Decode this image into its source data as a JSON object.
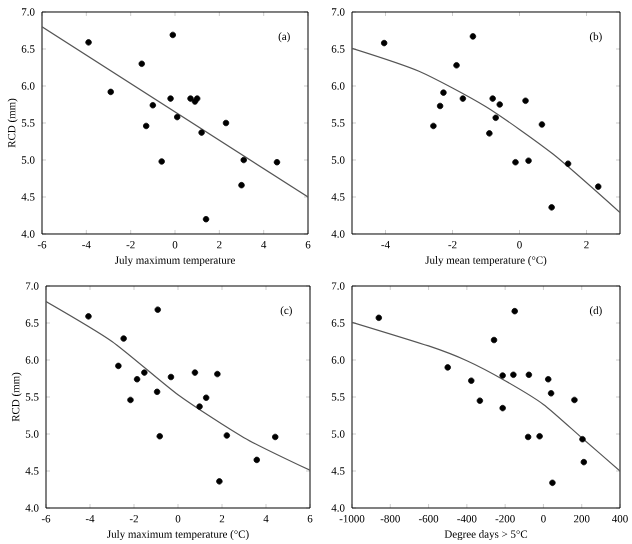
{
  "chart_data": [
    {
      "type": "scatter",
      "xlabel": "July maximum temperature",
      "ylabel": "RCD (mm)",
      "annotations": [
        "(a)"
      ],
      "xlim": [
        -6,
        6
      ],
      "xticks": [
        -6,
        -4,
        -2,
        0,
        2,
        4,
        6
      ],
      "ylim": [
        4,
        7
      ],
      "yticks": [
        {
          "value": 4,
          "label": "4.0"
        },
        {
          "value": 4.5,
          "label": "4.5"
        },
        {
          "value": 5,
          "label": "5.0"
        },
        {
          "value": 5.5,
          "label": "5.5"
        },
        {
          "value": 6,
          "label": "6.0"
        },
        {
          "value": 6.5,
          "label": "6.5"
        },
        {
          "value": 7,
          "label": "7.0"
        }
      ],
      "series": [
        {
          "color": "#000000",
          "x": [
            -3.9,
            -0.1,
            -1.5,
            -2.9,
            -1.0,
            -0.2,
            -1.3,
            0.1,
            0.7,
            0.9,
            1.0,
            1.2,
            2.3,
            -0.6,
            3.1,
            3.0,
            4.6,
            1.4
          ],
          "values": [
            6.59,
            6.69,
            6.3,
            5.92,
            5.74,
            5.83,
            5.46,
            5.58,
            5.83,
            5.79,
            5.83,
            5.37,
            5.5,
            4.98,
            5.0,
            4.66,
            4.97,
            4.2
          ]
        },
        {
          "type": "line",
          "color": "#555555",
          "x": [
            -6,
            6
          ],
          "values": [
            6.8,
            4.5
          ]
        }
      ]
    },
    {
      "type": "scatter",
      "xlabel": "July mean temperature (°C)",
      "annotations": [
        "(b)"
      ],
      "xlim": [
        -5,
        3
      ],
      "xticks": [
        -4,
        -2,
        0,
        2
      ],
      "ylim": [
        4,
        7
      ],
      "yticks": [
        {
          "value": 4,
          "label": "4.0"
        },
        {
          "value": 4.5,
          "label": "4.5"
        },
        {
          "value": 5,
          "label": "5.0"
        },
        {
          "value": 5.5,
          "label": "5.5"
        },
        {
          "value": 6,
          "label": "6.0"
        },
        {
          "value": 6.5,
          "label": "6.5"
        },
        {
          "value": 7,
          "label": "7.0"
        }
      ],
      "series": [
        {
          "color": "#000000",
          "x": [
            -4.04,
            -1.39,
            -1.88,
            -2.27,
            -2.37,
            -2.57,
            -1.69,
            -0.8,
            -0.59,
            -0.71,
            -0.9,
            0.18,
            0.67,
            -0.12,
            0.27,
            1.45,
            0.96,
            2.35
          ],
          "values": [
            6.58,
            6.67,
            6.28,
            5.91,
            5.73,
            5.46,
            5.83,
            5.83,
            5.75,
            5.57,
            5.36,
            5.8,
            5.48,
            4.97,
            4.99,
            4.95,
            4.36,
            4.64
          ]
        },
        {
          "type": "line",
          "color": "#555555",
          "x": [
            -5,
            -3,
            -1,
            1,
            3
          ],
          "values": [
            6.51,
            6.2,
            5.72,
            5.08,
            4.29
          ]
        }
      ]
    },
    {
      "type": "scatter",
      "xlabel": "July maximum temperature (°C)",
      "ylabel": "RCD (mm)",
      "annotations": [
        "(c)"
      ],
      "xlim": [
        -6,
        6
      ],
      "xticks": [
        -6,
        -4,
        -2,
        0,
        2,
        4,
        6
      ],
      "ylim": [
        4,
        7
      ],
      "yticks": [
        {
          "value": 4,
          "label": "4.0"
        },
        {
          "value": 4.5,
          "label": "4.5"
        },
        {
          "value": 5,
          "label": "5.0"
        },
        {
          "value": 5.5,
          "label": "5.5"
        },
        {
          "value": 6,
          "label": "6.0"
        },
        {
          "value": 6.5,
          "label": "6.5"
        },
        {
          "value": 7,
          "label": "7.0"
        }
      ],
      "series": [
        {
          "color": "#000000",
          "x": [
            -4.07,
            -0.92,
            -2.47,
            -2.71,
            -1.53,
            -1.86,
            -2.16,
            -0.95,
            -0.32,
            0.77,
            1.79,
            0.98,
            1.28,
            -0.83,
            2.22,
            3.58,
            4.42,
            1.88
          ],
          "values": [
            6.59,
            6.68,
            6.29,
            5.92,
            5.83,
            5.74,
            5.46,
            5.57,
            5.77,
            5.83,
            5.81,
            5.37,
            5.49,
            4.97,
            4.98,
            4.65,
            4.96,
            4.36
          ]
        },
        {
          "type": "line",
          "color": "#555555",
          "x": [
            -6,
            -3,
            0,
            3,
            6
          ],
          "values": [
            6.79,
            6.25,
            5.53,
            4.95,
            4.51
          ]
        }
      ]
    },
    {
      "type": "scatter",
      "xlabel": "Degree days > 5°C",
      "annotations": [
        "(d)"
      ],
      "xlim": [
        -1000,
        400
      ],
      "xticks": [
        -1000,
        -800,
        -600,
        -400,
        -200,
        0,
        200,
        400
      ],
      "ylim": [
        4,
        7
      ],
      "yticks": [
        {
          "value": 4,
          "label": "4.0"
        },
        {
          "value": 4.5,
          "label": "4.5"
        },
        {
          "value": 5,
          "label": "5.0"
        },
        {
          "value": 5.5,
          "label": "5.5"
        },
        {
          "value": 6,
          "label": "6.0"
        },
        {
          "value": 6.5,
          "label": "6.5"
        },
        {
          "value": 7,
          "label": "7.0"
        }
      ],
      "series": [
        {
          "color": "#000000",
          "x": [
            -860,
            -500,
            -377,
            -332,
            -258,
            -213,
            -213,
            -157,
            -150,
            -76,
            25,
            40,
            162,
            -80,
            -20,
            204,
            211,
            47
          ],
          "values": [
            6.57,
            5.9,
            5.72,
            5.45,
            6.27,
            5.35,
            5.79,
            5.8,
            6.66,
            5.8,
            5.74,
            5.55,
            5.46,
            4.96,
            4.97,
            4.93,
            4.62,
            4.34
          ]
        },
        {
          "type": "line",
          "color": "#555555",
          "x": [
            -1000,
            -600,
            -400,
            -200,
            0,
            200,
            400
          ],
          "values": [
            6.51,
            6.19,
            5.99,
            5.72,
            5.4,
            4.95,
            4.5
          ]
        }
      ]
    }
  ]
}
